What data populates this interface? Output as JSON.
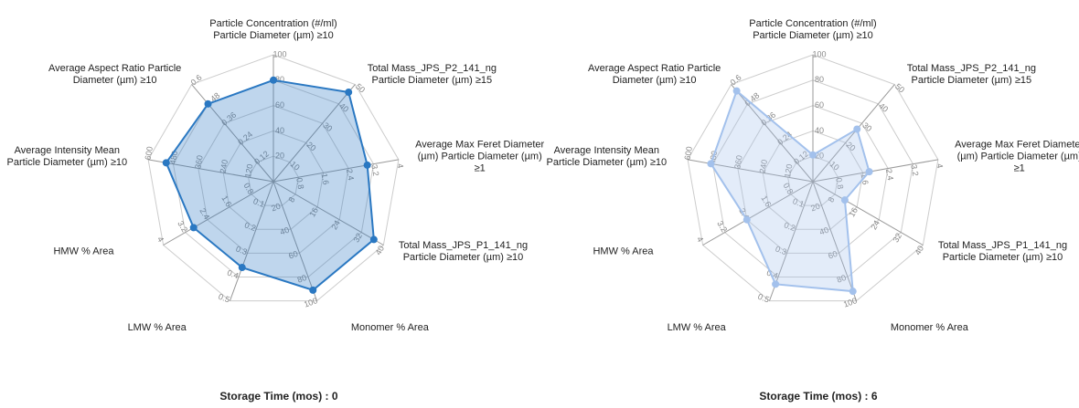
{
  "chart_data": [
    {
      "type": "radar",
      "title": "Storage Time (mos) : 0",
      "axes": [
        {
          "label": "Particle Concentration (#/ml) Particle Diameter (µm) ≥10",
          "lim": [
            0,
            100
          ],
          "ticks": [
            20,
            40,
            60,
            80,
            100
          ]
        },
        {
          "label": "Total Mass_JPS_P2_141_ng Particle Diameter (µm) ≥15",
          "lim": [
            0,
            50
          ],
          "ticks": [
            10,
            20,
            30,
            40,
            50
          ]
        },
        {
          "label": "Average Max Feret Diameter (µm) Particle Diameter (µm) ≥1",
          "lim": [
            0,
            4
          ],
          "ticks": [
            0.8,
            1.6,
            2.4,
            3.2,
            4
          ]
        },
        {
          "label": "Total Mass_JPS_P1_141_ng Particle Diameter (µm) ≥10",
          "lim": [
            0,
            40
          ],
          "ticks": [
            8,
            16,
            24,
            32,
            40
          ]
        },
        {
          "label": "Monomer % Area",
          "lim": [
            0,
            100
          ],
          "ticks": [
            20,
            40,
            60,
            80,
            100
          ]
        },
        {
          "label": "LMW % Area",
          "lim": [
            0,
            0.5
          ],
          "ticks": [
            0.1,
            0.2,
            0.3,
            0.4,
            0.5
          ]
        },
        {
          "label": "HMW % Area",
          "lim": [
            0,
            4
          ],
          "ticks": [
            0.8,
            1.6,
            2.4,
            3.2,
            4
          ]
        },
        {
          "label": "Average Intensity Mean Particle Diameter (µm) ≥10",
          "lim": [
            0,
            600
          ],
          "ticks": [
            120,
            240,
            360,
            480,
            600
          ]
        },
        {
          "label": "Average Aspect Ratio Particle Diameter (µm) ≥10",
          "lim": [
            0,
            0.6
          ],
          "ticks": [
            0.12,
            0.24,
            0.36,
            0.48,
            0.6
          ]
        }
      ],
      "series": [
        {
          "color": "#2a78c2",
          "fill_opacity": 0.3,
          "values": [
            80,
            46,
            3.0,
            36.5,
            91,
            0.36,
            2.9,
            514,
            0.48
          ]
        }
      ]
    },
    {
      "type": "radar",
      "title": "Storage Time (mos) : 6",
      "axes": [
        {
          "label": "Particle Concentration (#/ml) Particle Diameter (µm) ≥10",
          "lim": [
            0,
            100
          ],
          "ticks": [
            20,
            40,
            60,
            80,
            100
          ]
        },
        {
          "label": "Total Mass_JPS_P2_141_ng Particle Diameter (µm) ≥15",
          "lim": [
            0,
            50
          ],
          "ticks": [
            10,
            20,
            30,
            40,
            50
          ]
        },
        {
          "label": "Average Max Feret Diameter (µm) Particle Diameter (µm) ≥1",
          "lim": [
            0,
            4
          ],
          "ticks": [
            0.8,
            1.6,
            2.4,
            3.2,
            4
          ]
        },
        {
          "label": "Total Mass_JPS_P1_141_ng Particle Diameter (µm) ≥10",
          "lim": [
            0,
            40
          ],
          "ticks": [
            8,
            16,
            24,
            32,
            40
          ]
        },
        {
          "label": "Monomer % Area",
          "lim": [
            0,
            100
          ],
          "ticks": [
            20,
            40,
            60,
            80,
            100
          ]
        },
        {
          "label": "LMW % Area",
          "lim": [
            0,
            0.5
          ],
          "ticks": [
            0.1,
            0.2,
            0.3,
            0.4,
            0.5
          ]
        },
        {
          "label": "HMW % Area",
          "lim": [
            0,
            4
          ],
          "ticks": [
            0.8,
            1.6,
            2.4,
            3.2,
            4
          ]
        },
        {
          "label": "Average Intensity Mean Particle Diameter (µm) ≥10",
          "lim": [
            0,
            600
          ],
          "ticks": [
            120,
            240,
            360,
            480,
            600
          ]
        },
        {
          "label": "Average Aspect Ratio Particle Diameter (µm) ≥10",
          "lim": [
            0,
            0.6
          ],
          "ticks": [
            0.12,
            0.24,
            0.36,
            0.48,
            0.6
          ]
        }
      ],
      "series": [
        {
          "color": "#a3c1ec",
          "fill_opacity": 0.3,
          "values": [
            21,
            27,
            1.8,
            11.6,
            92,
            0.43,
            2.4,
            489,
            0.56
          ]
        }
      ]
    }
  ]
}
